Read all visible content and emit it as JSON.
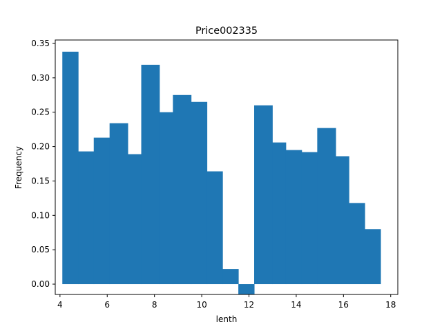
{
  "chart_data": {
    "type": "bar",
    "title": "Price002335",
    "xlabel": "lenth",
    "ylabel": "Frequency",
    "xlim": [
      3.8,
      18.3
    ],
    "ylim": [
      -0.015,
      0.355
    ],
    "xticks": [
      4,
      6,
      8,
      10,
      12,
      14,
      16,
      18
    ],
    "yticks": [
      0.0,
      0.05,
      0.1,
      0.15,
      0.2,
      0.25,
      0.3,
      0.35
    ],
    "ytick_labels": [
      "0.00",
      "0.05",
      "0.10",
      "0.15",
      "0.20",
      "0.25",
      "0.30",
      "0.35"
    ],
    "bar_color": "#1f77b4",
    "bins": [
      {
        "x0": 4.1,
        "x1": 4.77,
        "value": 0.338
      },
      {
        "x0": 4.77,
        "x1": 5.43,
        "value": 0.193
      },
      {
        "x0": 5.43,
        "x1": 6.1,
        "value": 0.213
      },
      {
        "x0": 6.1,
        "x1": 6.87,
        "value": 0.234
      },
      {
        "x0": 6.87,
        "x1": 7.44,
        "value": 0.189
      },
      {
        "x0": 7.44,
        "x1": 8.21,
        "value": 0.319
      },
      {
        "x0": 8.21,
        "x1": 8.78,
        "value": 0.25
      },
      {
        "x0": 8.78,
        "x1": 9.55,
        "value": 0.275
      },
      {
        "x0": 9.55,
        "x1": 10.22,
        "value": 0.265
      },
      {
        "x0": 10.22,
        "x1": 10.88,
        "value": 0.164
      },
      {
        "x0": 10.88,
        "x1": 11.55,
        "value": 0.022
      },
      {
        "x0": 11.55,
        "x1": 12.22,
        "value": -0.015
      },
      {
        "x0": 12.22,
        "x1": 12.99,
        "value": 0.26
      },
      {
        "x0": 12.99,
        "x1": 13.56,
        "value": 0.206
      },
      {
        "x0": 13.56,
        "x1": 14.23,
        "value": 0.195
      },
      {
        "x0": 14.23,
        "x1": 14.89,
        "value": 0.192
      },
      {
        "x0": 14.89,
        "x1": 15.67,
        "value": 0.227
      },
      {
        "x0": 15.67,
        "x1": 16.23,
        "value": 0.186
      },
      {
        "x0": 16.23,
        "x1": 16.9,
        "value": 0.118
      },
      {
        "x0": 16.9,
        "x1": 17.57,
        "value": 0.08
      }
    ]
  }
}
